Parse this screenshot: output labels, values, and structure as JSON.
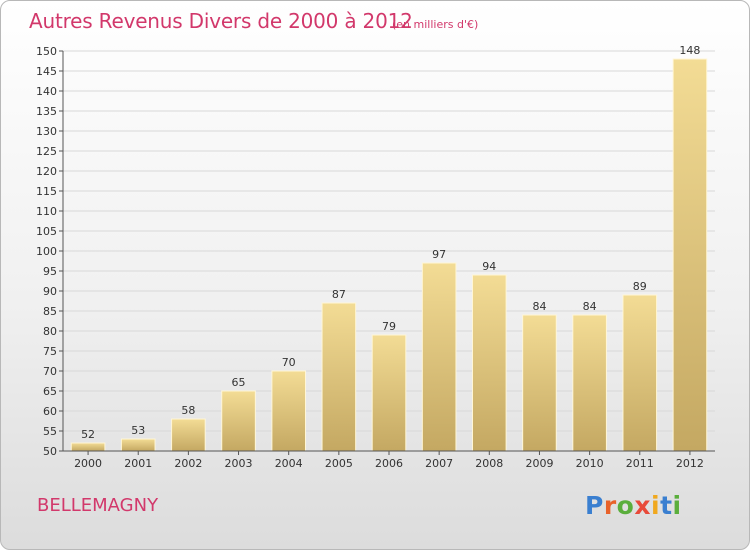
{
  "title": "Autres Revenus Divers de 2000 à 2012",
  "subtitle": "(en milliers d'€)",
  "commune": "BELLEMAGNY",
  "logo": {
    "text": "Proxiti",
    "letters": [
      {
        "char": "P",
        "color": "#3a7fd0"
      },
      {
        "char": "r",
        "color": "#e8622a"
      },
      {
        "char": "o",
        "color": "#5aae3c"
      },
      {
        "char": "x",
        "color": "#e84a3a"
      },
      {
        "char": "i",
        "color": "#f0a81e"
      },
      {
        "char": "t",
        "color": "#3a7fd0"
      },
      {
        "char": "i",
        "color": "#5aae3c"
      }
    ]
  },
  "colors": {
    "title": "#d2386b",
    "bar_light": "#f3dc95",
    "bar_dark": "#c4a862",
    "grid": "#d8d8d8",
    "axis": "#555555"
  },
  "chart_data": {
    "type": "bar",
    "categories": [
      "2000",
      "2001",
      "2002",
      "2003",
      "2004",
      "2005",
      "2006",
      "2007",
      "2008",
      "2009",
      "2010",
      "2011",
      "2012"
    ],
    "values": [
      52,
      53,
      58,
      65,
      70,
      87,
      79,
      97,
      94,
      84,
      84,
      89,
      148
    ],
    "ylim": [
      50,
      150
    ],
    "ytick_step": 5,
    "grid": true,
    "data_labels": true
  }
}
